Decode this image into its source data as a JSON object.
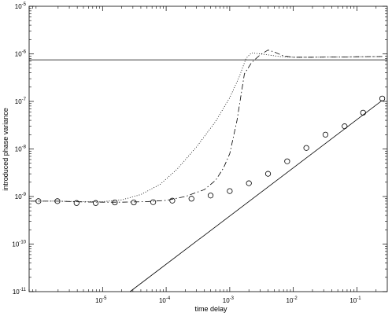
{
  "chart_data": {
    "type": "line",
    "title": "",
    "xlabel": "time delay",
    "ylabel": "introduced phase variance",
    "xscale": "log",
    "yscale": "log",
    "xlim": [
      7e-07,
      0.3
    ],
    "ylim": [
      1e-11,
      1e-05
    ],
    "grid": false,
    "legend": "none",
    "x_ticks": [
      {
        "base": "10",
        "exp": "-5",
        "value": 1e-05
      },
      {
        "base": "10",
        "exp": "-4",
        "value": 0.0001
      },
      {
        "base": "10",
        "exp": "-3",
        "value": 0.001
      },
      {
        "base": "10",
        "exp": "-2",
        "value": 0.01
      },
      {
        "base": "10",
        "exp": "-1",
        "value": 0.1
      }
    ],
    "y_ticks": [
      {
        "base": "10",
        "exp": "-11",
        "value": 1e-11
      },
      {
        "base": "10",
        "exp": "-10",
        "value": 1e-10
      },
      {
        "base": "10",
        "exp": "-9",
        "value": 1e-09
      },
      {
        "base": "10",
        "exp": "-8",
        "value": 1e-08
      },
      {
        "base": "10",
        "exp": "-7",
        "value": 1e-07
      },
      {
        "base": "10",
        "exp": "-6",
        "value": 1e-06
      },
      {
        "base": "10",
        "exp": "-5",
        "value": 1e-05
      }
    ],
    "series": [
      {
        "style": "solid",
        "x": [
          7e-07,
          0.3
        ],
        "y": [
          7.5e-07,
          7.5e-07
        ]
      },
      {
        "style": "solid",
        "x": [
          2.7e-05,
          0.25
        ],
        "y": [
          1e-11,
          1.05e-07
        ]
      },
      {
        "style": "dotted",
        "x": [
          7.5e-07,
          2e-06,
          5e-06,
          1e-05,
          2e-05,
          4e-05,
          8e-05,
          0.00015,
          0.0003,
          0.0006,
          0.001,
          0.0014,
          0.0018,
          0.0022,
          0.003,
          0.004,
          0.006,
          0.01,
          0.02,
          0.05,
          0.1,
          0.25
        ],
        "y": [
          8e-10,
          8e-10,
          7.8e-10,
          7.8e-10,
          8.5e-10,
          1.1e-09,
          1.8e-09,
          3.8e-09,
          1.1e-08,
          3.8e-08,
          1.2e-07,
          3.2e-07,
          8e-07,
          1.05e-06,
          1e-06,
          9.5e-07,
          8.8e-07,
          8.5e-07,
          8.5e-07,
          8.6e-07,
          8.7e-07,
          8.8e-07
        ]
      },
      {
        "style": "dashdot",
        "x": [
          7.5e-07,
          2e-06,
          5e-06,
          1e-05,
          2e-05,
          5e-05,
          0.0001,
          0.0002,
          0.0004,
          0.0006,
          0.0008,
          0.001,
          0.0013,
          0.0017,
          0.0022,
          0.003,
          0.004,
          0.005,
          0.007,
          0.01,
          0.02,
          0.05,
          0.1,
          0.25
        ],
        "y": [
          8e-10,
          8e-10,
          7.7e-10,
          7.6e-10,
          7.6e-10,
          7.8e-10,
          8.3e-10,
          1e-09,
          1.4e-09,
          2.2e-09,
          4e-09,
          8e-09,
          4e-08,
          3.8e-07,
          6.5e-07,
          9.5e-07,
          1.2e-06,
          1.1e-06,
          9e-07,
          8.5e-07,
          8.5e-07,
          8.6e-07,
          8.7e-07,
          8.8e-07
        ]
      },
      {
        "style": "circle-markers",
        "x": [
          9.8e-07,
          1.95e-06,
          3.9e-06,
          7.8e-06,
          1.56e-05,
          3.1e-05,
          6.25e-05,
          0.000125,
          0.00025,
          0.0005,
          0.001,
          0.002,
          0.004,
          0.008,
          0.016,
          0.032,
          0.064,
          0.125,
          0.25
        ],
        "y": [
          8e-10,
          8e-10,
          7.3e-10,
          7.3e-10,
          7.5e-10,
          7.5e-10,
          7.6e-10,
          8.2e-10,
          9e-10,
          1.05e-09,
          1.3e-09,
          1.9e-09,
          3e-09,
          5.5e-09,
          1.05e-08,
          2e-08,
          3e-08,
          5.8e-08,
          1.15e-07
        ]
      }
    ]
  }
}
